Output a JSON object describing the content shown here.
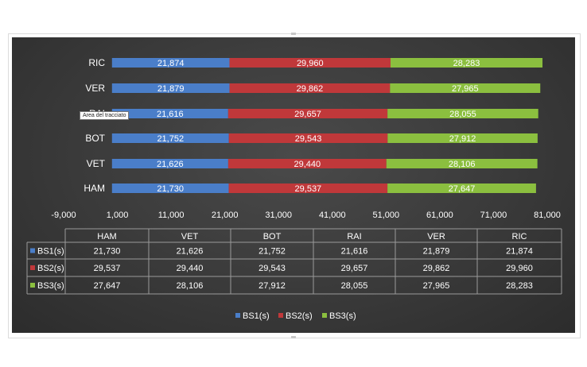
{
  "tooltip": "Area del tracciato",
  "colors": {
    "BS1(s)": "#4a7ec9",
    "BS2(s)": "#c0383a",
    "BS3(s)": "#8bbf3f",
    "text": "#ffffff",
    "grid": "#9a9a9a"
  },
  "chart_data": {
    "type": "bar",
    "orientation": "horizontal",
    "stacked": true,
    "categories": [
      "HAM",
      "VET",
      "BOT",
      "RAI",
      "VER",
      "RIC"
    ],
    "series": [
      {
        "name": "BS1(s)",
        "values": [
          21.73,
          21.626,
          21.752,
          21.616,
          21.879,
          21.874
        ]
      },
      {
        "name": "BS2(s)",
        "values": [
          29.537,
          29.44,
          29.543,
          29.657,
          29.862,
          29.96
        ]
      },
      {
        "name": "BS3(s)",
        "values": [
          27.647,
          28.106,
          27.912,
          28.055,
          27.965,
          28.283
        ]
      }
    ],
    "value_labels": {
      "BS1(s)": [
        "21,730",
        "21,626",
        "21,752",
        "21,616",
        "21,879",
        "21,874"
      ],
      "BS2(s)": [
        "29,537",
        "29,440",
        "29,543",
        "29,657",
        "29,862",
        "29,960"
      ],
      "BS3(s)": [
        "27,647",
        "28,106",
        "27,912",
        "28,055",
        "27,965",
        "28,283"
      ]
    },
    "xlim": [
      -9,
      81
    ],
    "x_ticks": [
      -9,
      1,
      11,
      21,
      31,
      41,
      51,
      61,
      71,
      81
    ],
    "x_tick_labels": [
      "-9,000",
      "1,000",
      "11,000",
      "21,000",
      "31,000",
      "41,000",
      "51,000",
      "61,000",
      "71,000",
      "81,000"
    ],
    "grid": false,
    "legend_position": "bottom",
    "data_table": true
  }
}
